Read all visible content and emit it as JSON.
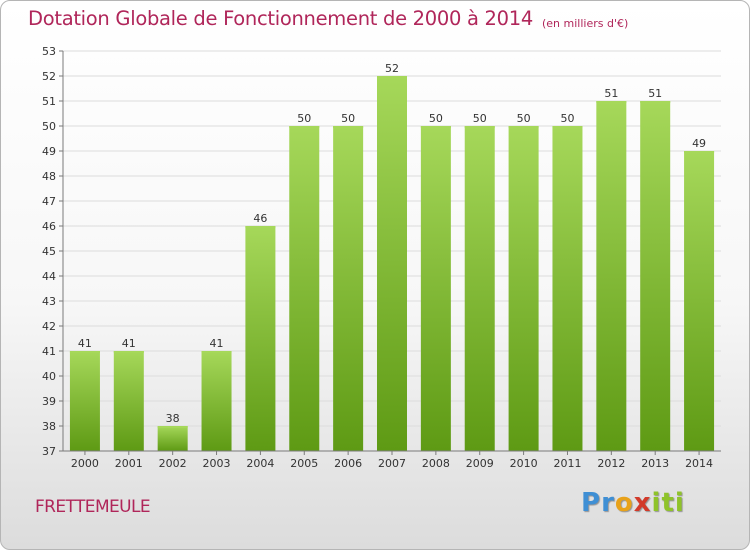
{
  "chart_data": {
    "type": "bar",
    "title": "Dotation Globale de Fonctionnement de 2000 à 2014",
    "subtitle": "(en milliers d'€)",
    "categories": [
      "2000",
      "2001",
      "2002",
      "2003",
      "2004",
      "2005",
      "2006",
      "2007",
      "2008",
      "2009",
      "2010",
      "2011",
      "2012",
      "2013",
      "2014"
    ],
    "values": [
      41,
      41,
      38,
      41,
      46,
      50,
      50,
      52,
      50,
      50,
      50,
      50,
      51,
      51,
      49
    ],
    "ylim": [
      37,
      53
    ],
    "yticks": [
      37,
      38,
      39,
      40,
      41,
      42,
      43,
      44,
      45,
      46,
      47,
      48,
      49,
      50,
      51,
      52,
      53
    ],
    "grid": true,
    "bar_color": "#7fbf2e",
    "bar_color_dark": "#5e9a14",
    "bar_color_light": "#a6d85a"
  },
  "footer": {
    "commune": "FRETTEMEULE",
    "logo_letters": [
      "P",
      "r",
      "o",
      "x",
      "i",
      "t",
      "i"
    ],
    "logo_colors": [
      "#3f8fd4",
      "#3f8fd4",
      "#e8a21a",
      "#d23a2a",
      "#8fc32a",
      "#8fc32a",
      "#8fc32a"
    ]
  },
  "colors": {
    "title": "#b0265a",
    "grid": "#dcdcdc",
    "axis": "#7a7a7a"
  }
}
